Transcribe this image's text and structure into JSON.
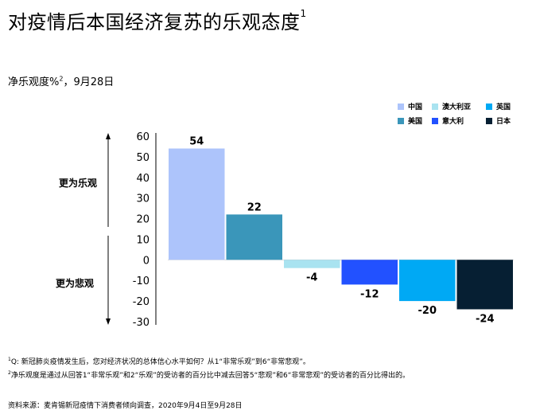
{
  "title": "对疫情后本国经济复苏的乐观态度",
  "title_footnote": "1",
  "subtitle_prefix": "净乐观度%",
  "subtitle_footnote": "2",
  "subtitle_suffix": "，9月28日",
  "side_labels": {
    "optimistic": "更为乐观",
    "pessimistic": "更为悲观"
  },
  "chart_data": {
    "type": "bar",
    "categories": [
      "中国",
      "美国",
      "澳大利亚",
      "意大利",
      "英国",
      "日本"
    ],
    "values": [
      54,
      22,
      -4,
      -12,
      -20,
      -24
    ],
    "colors": [
      "#adc4fb",
      "#3a96ba",
      "#a9e3f0",
      "#2251ff",
      "#00a9f4",
      "#061f33"
    ],
    "ylim": [
      -30,
      60
    ],
    "yticks": [
      60,
      50,
      40,
      30,
      20,
      10,
      0,
      -10,
      -20,
      -30
    ],
    "ytick_labels": [
      "60",
      "50",
      "40",
      "30",
      "20",
      "10",
      "0",
      "-10",
      "-20",
      "-30"
    ],
    "data_labels": [
      "54",
      "22",
      "-4",
      "-12",
      "-20",
      "-24"
    ],
    "legend": {
      "position": "top-right",
      "entries": [
        {
          "label": "中国",
          "color": "#adc4fb"
        },
        {
          "label": "澳大利亚",
          "color": "#a9e3f0"
        },
        {
          "label": "英国",
          "color": "#00a9f4"
        },
        {
          "label": "美国",
          "color": "#3a96ba"
        },
        {
          "label": "意大利",
          "color": "#2251ff"
        },
        {
          "label": "日本",
          "color": "#061f33"
        }
      ]
    },
    "grid": false
  },
  "footnotes": [
    {
      "mark": "1",
      "text": "Q: 新冠肺炎疫情发生后，您对经济状况的总体信心水平如何？从1“非常乐观”到6“非常悲观”。"
    },
    {
      "mark": "2",
      "text": "净乐观度是通过从回答1“非常乐观”和2“乐观”的受访者的百分比中减去回答5“悲观”和6“非常悲观”的受访者的百分比得出的。"
    }
  ],
  "source": "资料来源：麦肯锡新冠疫情下消费者倾向调查，2020年9月4日至9月28日"
}
